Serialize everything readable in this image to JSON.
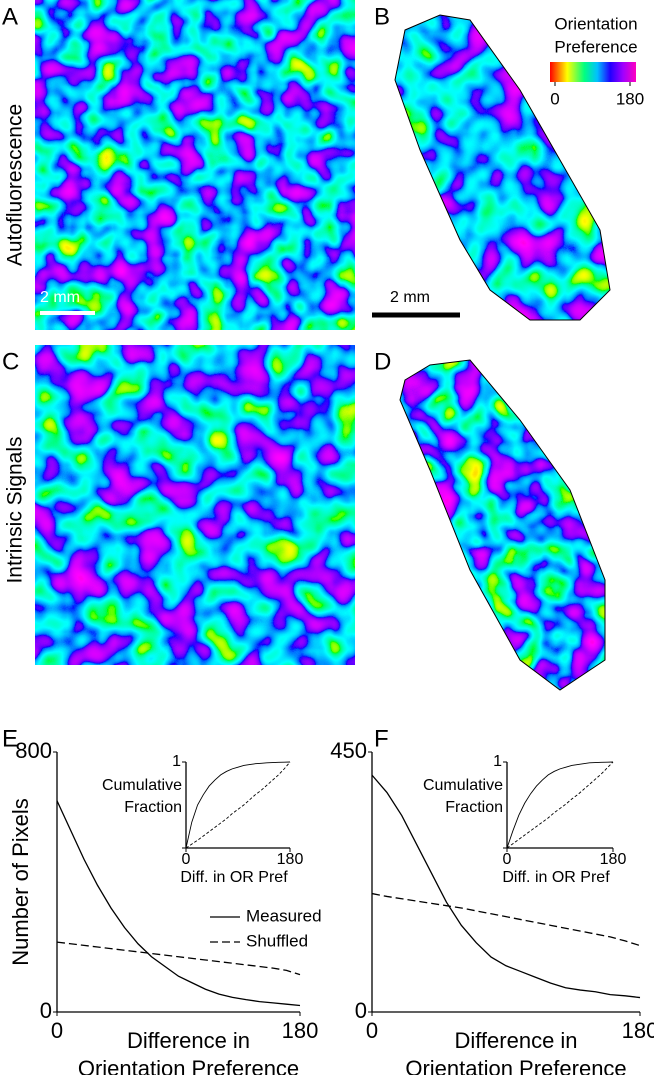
{
  "figure": {
    "panel_labels": [
      "A",
      "B",
      "C",
      "D",
      "E",
      "F"
    ],
    "row_labels": [
      "Autofluorescence",
      "Intrinsic Signals"
    ],
    "scale_bars": [
      "2 mm",
      "2 mm"
    ],
    "colorbar": {
      "title": [
        "Orientation",
        "Preference"
      ],
      "ticks": [
        0,
        180
      ]
    }
  },
  "chart_data": [
    {
      "type": "line",
      "ylabel": "Number of Pixels",
      "xlabel": [
        "Difference in",
        "Orientation Preference"
      ],
      "xlim": [
        0,
        180
      ],
      "ylim": [
        0,
        800
      ],
      "xticks": [
        0,
        180
      ],
      "yticks": [
        0,
        800
      ],
      "legend": "right",
      "x": [
        0,
        10,
        20,
        30,
        40,
        50,
        60,
        70,
        80,
        90,
        100,
        110,
        120,
        130,
        140,
        150,
        160,
        170,
        180
      ],
      "series": [
        {
          "name": "Measured",
          "color": "#000000",
          "style": "solid",
          "values": [
            650,
            560,
            470,
            390,
            320,
            260,
            210,
            170,
            140,
            110,
            90,
            70,
            55,
            45,
            38,
            32,
            28,
            24,
            20
          ]
        },
        {
          "name": "Shuffled",
          "color": "#000000",
          "style": "dashed",
          "values": [
            215,
            210,
            205,
            200,
            195,
            190,
            185,
            180,
            175,
            170,
            165,
            160,
            155,
            150,
            145,
            140,
            135,
            128,
            115
          ]
        }
      ]
    },
    {
      "type": "line",
      "ylabel": [
        "Cumulative",
        "Fraction"
      ],
      "xlabel": "Diff. in OR Pref",
      "xlim": [
        0,
        180
      ],
      "ylim": [
        0,
        1
      ],
      "xticks": [
        0,
        180
      ],
      "yticks": [
        0,
        1
      ],
      "x": [
        0,
        10,
        20,
        30,
        40,
        50,
        60,
        70,
        80,
        90,
        100,
        110,
        120,
        130,
        140,
        150,
        160,
        170,
        180
      ],
      "series": [
        {
          "color": "#000000",
          "style": "solid",
          "values": [
            0,
            0.3,
            0.5,
            0.62,
            0.72,
            0.79,
            0.85,
            0.89,
            0.92,
            0.94,
            0.96,
            0.97,
            0.98,
            0.985,
            0.99,
            0.993,
            0.996,
            0.998,
            1
          ]
        },
        {
          "color": "#000000",
          "style": "dashed",
          "values": [
            0,
            0.045,
            0.09,
            0.14,
            0.19,
            0.24,
            0.29,
            0.34,
            0.4,
            0.45,
            0.5,
            0.56,
            0.62,
            0.67,
            0.73,
            0.79,
            0.85,
            0.92,
            1
          ]
        }
      ]
    },
    {
      "type": "line",
      "xlabel": [
        "Difference in",
        "Orientation Preference"
      ],
      "xlim": [
        0,
        180
      ],
      "ylim": [
        0,
        450
      ],
      "xticks": [
        0,
        180
      ],
      "yticks": [
        0,
        450
      ],
      "x": [
        0,
        10,
        20,
        30,
        40,
        50,
        60,
        70,
        80,
        90,
        100,
        110,
        120,
        130,
        140,
        150,
        160,
        170,
        180
      ],
      "series": [
        {
          "color": "#000000",
          "style": "solid",
          "values": [
            410,
            380,
            340,
            290,
            240,
            190,
            150,
            120,
            95,
            80,
            70,
            60,
            50,
            42,
            38,
            35,
            30,
            28,
            25
          ]
        },
        {
          "color": "#000000",
          "style": "dashed",
          "values": [
            205,
            200,
            196,
            192,
            188,
            184,
            180,
            175,
            170,
            165,
            160,
            155,
            150,
            145,
            140,
            135,
            130,
            123,
            115
          ]
        }
      ]
    },
    {
      "type": "line",
      "ylabel": [
        "Cumulative",
        "Fraction"
      ],
      "xlabel": "Diff. in OR Pref",
      "xlim": [
        0,
        180
      ],
      "ylim": [
        0,
        1
      ],
      "xticks": [
        0,
        180
      ],
      "yticks": [
        0,
        1
      ],
      "x": [
        0,
        10,
        20,
        30,
        40,
        50,
        60,
        70,
        80,
        90,
        100,
        110,
        120,
        130,
        140,
        150,
        160,
        170,
        180
      ],
      "series": [
        {
          "color": "#000000",
          "style": "solid",
          "values": [
            0,
            0.2,
            0.38,
            0.52,
            0.63,
            0.72,
            0.79,
            0.85,
            0.89,
            0.92,
            0.94,
            0.96,
            0.97,
            0.98,
            0.99,
            0.993,
            0.996,
            0.998,
            1
          ]
        },
        {
          "color": "#000000",
          "style": "dashed",
          "values": [
            0,
            0.05,
            0.1,
            0.15,
            0.2,
            0.25,
            0.3,
            0.35,
            0.41,
            0.46,
            0.51,
            0.57,
            0.62,
            0.68,
            0.74,
            0.8,
            0.86,
            0.93,
            1
          ]
        }
      ]
    }
  ]
}
